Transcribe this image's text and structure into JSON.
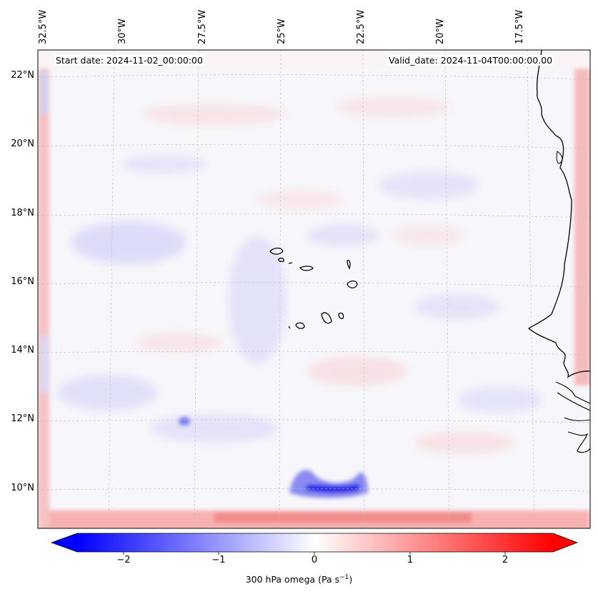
{
  "map": {
    "start_date": "Start date: 2024-11-02_00:00:00",
    "valid_date": "Valid_date: 2024-11-04T00:00:00.00",
    "lon_labels": [
      "32.5°W",
      "30°W",
      "27.5°W",
      "25°W",
      "22.5°W",
      "20°W",
      "17.5°W"
    ],
    "lat_labels": [
      "22°N",
      "20°N",
      "18°N",
      "16°N",
      "14°N",
      "12°N",
      "10°N"
    ],
    "gridlines": true,
    "extent": {
      "lon": [
        -33.0,
        -16.0
      ],
      "lat": [
        8.7,
        22.7
      ]
    }
  },
  "colorbar": {
    "label": "300 hPa omega (Pa s",
    "label_sup": "−1",
    "label_end": ")",
    "ticks": [
      "−2",
      "−1",
      "0",
      "1",
      "2"
    ],
    "range": [
      -2.7,
      2.7
    ],
    "colormap": "bwr",
    "colors": {
      "negative": "#0000ff",
      "zero": "#ffffff",
      "positive": "#ff0000"
    },
    "extend": "both"
  },
  "features": {
    "coastline_color": "#000000",
    "strong_ascent_label": "",
    "notes_color_neg": "#3a3aee",
    "notes_color_pos": "#f07070"
  }
}
